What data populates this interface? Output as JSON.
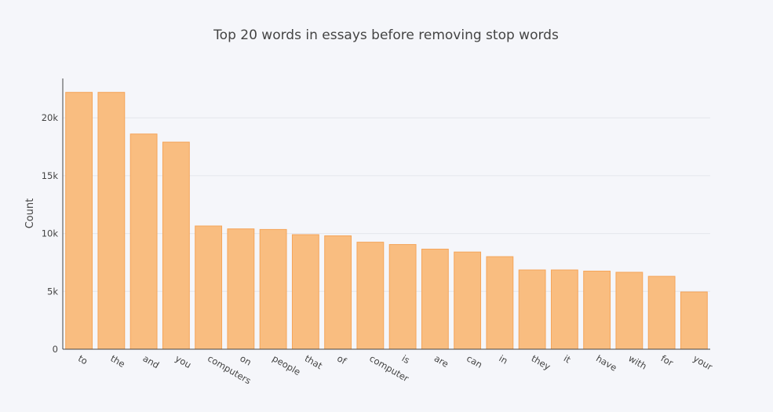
{
  "chart_data": {
    "type": "bar",
    "title": "Top 20 words in essays before removing stop words",
    "xlabel": "",
    "ylabel": "Count",
    "categories": [
      "to",
      "the",
      "and",
      "you",
      "computers",
      "on",
      "people",
      "that",
      "of",
      "computer",
      "is",
      "are",
      "can",
      "in",
      "they",
      "it",
      "have",
      "with",
      "for",
      "your"
    ],
    "values": [
      22200,
      22200,
      18600,
      17900,
      10650,
      10400,
      10350,
      9900,
      9800,
      9250,
      9050,
      8650,
      8400,
      8000,
      6850,
      6850,
      6750,
      6650,
      6300,
      4950
    ],
    "ylim": [
      0,
      23400
    ],
    "yticks": [
      0,
      5000,
      10000,
      15000,
      20000
    ],
    "ytick_labels": [
      "0",
      "5k",
      "10k",
      "15k",
      "20k"
    ],
    "grid": true,
    "legend": "none",
    "colors": {
      "bar_fill": "#f9bd80",
      "bar_stroke": "#f5a55a",
      "background": "#f5f6fa",
      "grid": "#e4e6ec",
      "text": "#444444"
    }
  }
}
